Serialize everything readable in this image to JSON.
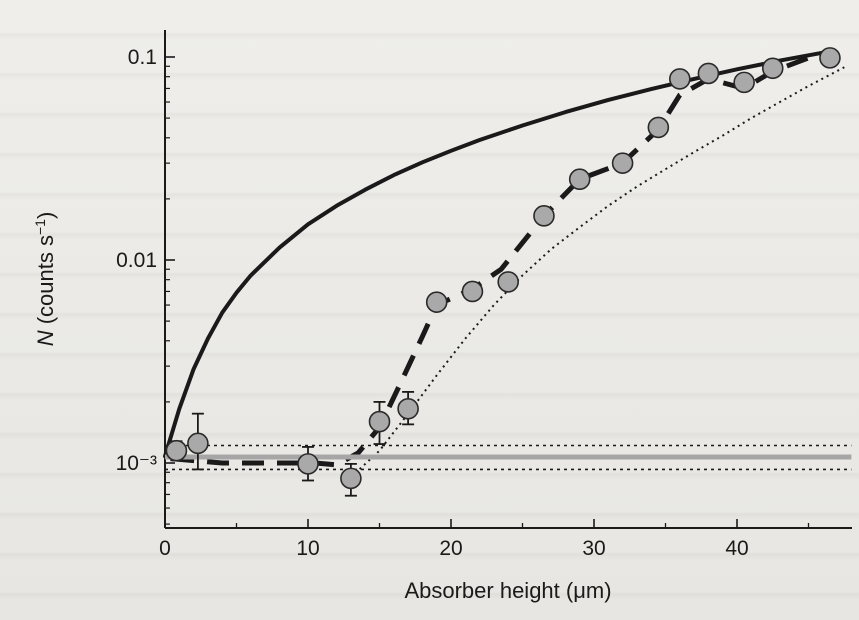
{
  "chart_data": {
    "type": "scatter",
    "title": "",
    "xlabel": "Absorber height  (μm)",
    "ylabel": "N (counts s⁻¹)",
    "ylabel_parts": {
      "italic": "N",
      "rest": " (counts s",
      "sup": "−1",
      "close": ")"
    },
    "x_scale": "linear",
    "y_scale": "log",
    "xlim": [
      0,
      48
    ],
    "ylim": [
      0.0008,
      0.12
    ],
    "x_ticks": [
      0,
      10,
      20,
      30,
      40
    ],
    "x_tick_labels": [
      "0",
      "10",
      "20",
      "30",
      "40"
    ],
    "y_ticks": [
      0.001,
      0.01,
      0.1
    ],
    "y_tick_labels": [
      "10⁻³",
      "0.01",
      "0.1"
    ],
    "points": [
      {
        "x": 0.8,
        "y": 0.00115,
        "yerr_low": 0.00103,
        "yerr_high": 0.00128
      },
      {
        "x": 2.3,
        "y": 0.00125,
        "yerr_low": 0.00093,
        "yerr_high": 0.00175
      },
      {
        "x": 10.0,
        "y": 0.00099,
        "yerr_low": 0.00082,
        "yerr_high": 0.0012
      },
      {
        "x": 13.0,
        "y": 0.00084,
        "yerr_low": 0.00069,
        "yerr_high": 0.00099
      },
      {
        "x": 15.0,
        "y": 0.0016,
        "yerr_low": 0.00124,
        "yerr_high": 0.002
      },
      {
        "x": 17.0,
        "y": 0.00185,
        "yerr_low": 0.00155,
        "yerr_high": 0.00224
      },
      {
        "x": 19.0,
        "y": 0.0062
      },
      {
        "x": 21.5,
        "y": 0.007
      },
      {
        "x": 24.0,
        "y": 0.0078
      },
      {
        "x": 26.5,
        "y": 0.0165
      },
      {
        "x": 29.0,
        "y": 0.025
      },
      {
        "x": 32.0,
        "y": 0.03
      },
      {
        "x": 34.5,
        "y": 0.045
      },
      {
        "x": 36.0,
        "y": 0.078
      },
      {
        "x": 38.0,
        "y": 0.083
      },
      {
        "x": 40.5,
        "y": 0.075
      },
      {
        "x": 42.5,
        "y": 0.088
      },
      {
        "x": 46.5,
        "y": 0.099
      }
    ],
    "series": [
      {
        "style": "solid-black",
        "x": [
          0,
          1,
          2,
          3,
          4,
          5,
          6,
          8,
          10,
          12,
          14,
          16,
          18,
          20,
          22,
          25,
          28,
          31,
          34,
          37,
          40,
          43,
          46
        ],
        "y": [
          0.00108,
          0.00185,
          0.0029,
          0.0041,
          0.0055,
          0.0069,
          0.0084,
          0.0115,
          0.015,
          0.0185,
          0.0222,
          0.0262,
          0.0303,
          0.0345,
          0.039,
          0.046,
          0.0535,
          0.0615,
          0.0695,
          0.078,
          0.087,
          0.096,
          0.105
        ]
      },
      {
        "style": "dashed-black",
        "x": [
          0.5,
          4,
          8,
          10.5,
          12,
          13.5,
          15,
          16.5,
          18,
          19,
          21.5,
          23.5,
          26.5,
          29,
          32,
          34.5,
          36,
          38,
          40.5,
          42.5,
          45.5
        ],
        "y": [
          0.00105,
          0.001,
          0.001,
          0.001,
          0.00098,
          0.00112,
          0.0015,
          0.0025,
          0.0042,
          0.006,
          0.0072,
          0.009,
          0.0165,
          0.025,
          0.03,
          0.044,
          0.065,
          0.078,
          0.07,
          0.085,
          0.102
        ]
      },
      {
        "style": "dotted-black",
        "x": [
          13,
          15,
          17,
          19,
          21,
          23,
          25,
          27,
          29,
          31,
          33,
          35,
          37,
          39,
          41,
          43,
          45,
          47.5
        ],
        "y": [
          0.00085,
          0.00115,
          0.00175,
          0.0027,
          0.0041,
          0.006,
          0.0084,
          0.0113,
          0.0145,
          0.0185,
          0.023,
          0.028,
          0.034,
          0.041,
          0.05,
          0.06,
          0.072,
          0.089
        ]
      },
      {
        "style": "solid-gray",
        "x": [
          0,
          48
        ],
        "y": [
          0.00107,
          0.00107
        ]
      },
      {
        "style": "dotted-band",
        "x": [
          0,
          48
        ],
        "y": [
          0.00122,
          0.00122
        ]
      },
      {
        "style": "dotted-band",
        "x": [
          0,
          48
        ],
        "y": [
          0.00093,
          0.00093
        ]
      }
    ],
    "grid": false,
    "legend": "none"
  },
  "colors": {
    "background": "#ecebe8",
    "ink": "#1a1a1a",
    "marker_fill": "#a9a9a9",
    "marker_edge": "#2a2a2a",
    "baseline": "#a6a6a6"
  }
}
